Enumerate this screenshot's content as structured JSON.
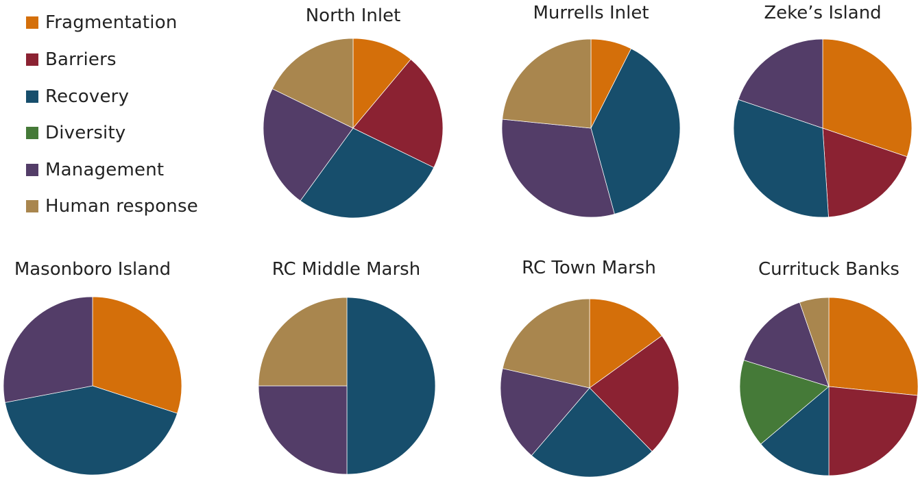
{
  "colors": {
    "Fragmentation": "#D46F0A",
    "Barriers": "#8B2232",
    "Recovery": "#174E6C",
    "Diversity": "#457A38",
    "Management": "#533D68",
    "Human response": "#A9864E"
  },
  "legend": {
    "items": [
      {
        "label": "Fragmentation",
        "color": "#D46F0A"
      },
      {
        "label": "Barriers",
        "color": "#8B2232"
      },
      {
        "label": "Recovery",
        "color": "#174E6C"
      },
      {
        "label": "Diversity",
        "color": "#457A38"
      },
      {
        "label": "Management",
        "color": "#533D68"
      },
      {
        "label": "Human response",
        "color": "#A9864E"
      }
    ]
  },
  "chart_data": [
    {
      "type": "pie",
      "title": "North Inlet",
      "categories": [
        "Fragmentation",
        "Barriers",
        "Recovery",
        "Management",
        "Human response"
      ],
      "values": [
        10,
        19,
        25,
        20,
        16
      ]
    },
    {
      "type": "pie",
      "title": "Murrells Inlet",
      "categories": [
        "Fragmentation",
        "Recovery",
        "Management",
        "Human response"
      ],
      "values": [
        7,
        36,
        29,
        22
      ]
    },
    {
      "type": "pie",
      "title": "Zeke’s Island",
      "categories": [
        "Fragmentation",
        "Barriers",
        "Recovery",
        "Management"
      ],
      "values": [
        29,
        18,
        30,
        19
      ]
    },
    {
      "type": "pie",
      "title": "Masonboro Island",
      "categories": [
        "Fragmentation",
        "Recovery",
        "Management"
      ],
      "values": [
        30,
        42,
        28
      ]
    },
    {
      "type": "pie",
      "title": "RC Middle Marsh",
      "categories": [
        "Recovery",
        "Management",
        "Human response"
      ],
      "values": [
        50,
        25,
        25
      ]
    },
    {
      "type": "pie",
      "title": "RC Town Marsh",
      "categories": [
        "Fragmentation",
        "Barriers",
        "Recovery",
        "Management",
        "Human response"
      ],
      "values": [
        14,
        21,
        22,
        16,
        20
      ]
    },
    {
      "type": "pie",
      "title": "Currituck Banks",
      "categories": [
        "Fragmentation",
        "Barriers",
        "Recovery",
        "Diversity",
        "Management",
        "Human response"
      ],
      "values": [
        25,
        22,
        13,
        15,
        14,
        5
      ]
    }
  ]
}
